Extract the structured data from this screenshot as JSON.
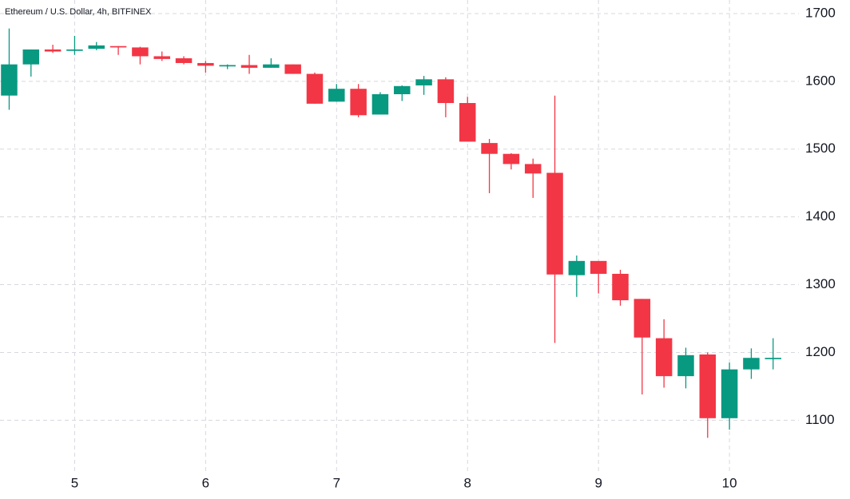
{
  "chart_data": {
    "type": "candlestick",
    "title": "Ethereum / U.S. Dollar, 4h, BITFINEX",
    "x": [
      4.5,
      4.6667,
      4.8333,
      5,
      5.1667,
      5.3333,
      5.5,
      5.6667,
      5.8333,
      6,
      6.1667,
      6.3333,
      6.5,
      6.6667,
      6.8333,
      7,
      7.1667,
      7.3333,
      7.5,
      7.6667,
      7.8333,
      8,
      8.1667,
      8.3333,
      8.5,
      8.6667,
      8.8333,
      9,
      9.1667,
      9.3333,
      9.5,
      9.6667,
      9.8333,
      10,
      10.1667,
      10.3333
    ],
    "open": [
      1579,
      1625,
      1647,
      1645,
      1648,
      1652,
      1650,
      1637,
      1634,
      1627,
      1622,
      1624,
      1620,
      1625,
      1611,
      1570,
      1589,
      1551,
      1581,
      1594,
      1603,
      1568,
      1509,
      1493,
      1478,
      1465,
      1314,
      1335,
      1316,
      1279,
      1221,
      1165,
      1197,
      1103,
      1175,
      1190
    ],
    "high": [
      1678,
      1647,
      1654,
      1667,
      1658,
      1652,
      1651,
      1644,
      1637,
      1630,
      1625,
      1639,
      1634,
      1625,
      1613,
      1596,
      1596,
      1584,
      1594,
      1608,
      1606,
      1577,
      1515,
      1494,
      1486,
      1579,
      1343,
      1335,
      1322,
      1279,
      1249,
      1207,
      1200,
      1185,
      1206,
      1221
    ],
    "low": [
      1558,
      1607,
      1642,
      1639,
      1646,
      1639,
      1625,
      1630,
      1625,
      1613,
      1618,
      1611,
      1620,
      1611,
      1567,
      1570,
      1547,
      1551,
      1571,
      1580,
      1547,
      1511,
      1435,
      1470,
      1428,
      1214,
      1282,
      1287,
      1269,
      1138,
      1148,
      1147,
      1074,
      1086,
      1161,
      1175
    ],
    "close": [
      1625,
      1647,
      1644,
      1647,
      1653,
      1650,
      1637,
      1633,
      1627,
      1623,
      1624,
      1620,
      1625,
      1611,
      1567,
      1589,
      1550,
      1581,
      1593,
      1603,
      1568,
      1511,
      1493,
      1478,
      1464,
      1315,
      1335,
      1316,
      1277,
      1222,
      1165,
      1196,
      1103,
      1175,
      1192,
      1192
    ],
    "up_color": "#089981",
    "down_color": "#f23645",
    "xlim": [
      4.43,
      10.53
    ],
    "xticks": [
      5,
      6,
      7,
      8,
      9,
      10
    ],
    "ylim": [
      1025,
      1720
    ],
    "yticks": [
      1100,
      1200,
      1300,
      1400,
      1500,
      1600,
      1700
    ],
    "grid": true
  }
}
